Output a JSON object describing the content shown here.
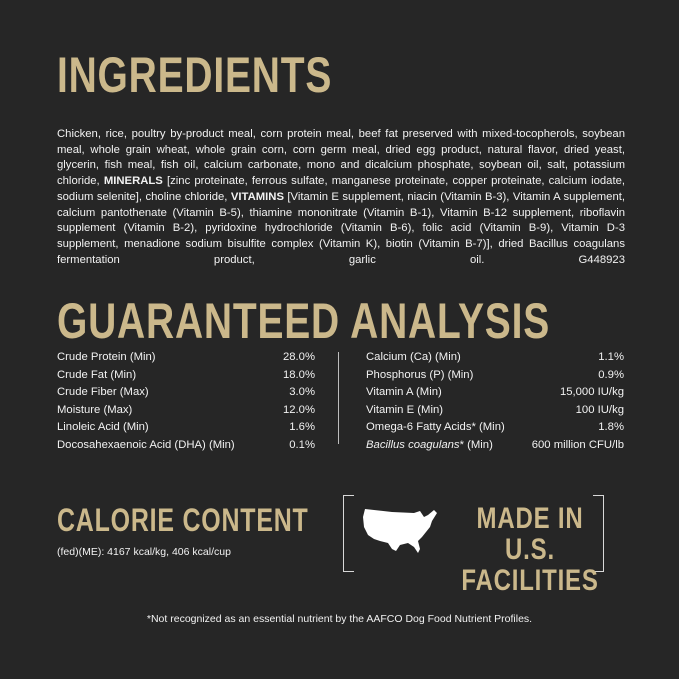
{
  "ingredients": {
    "title": "INGREDIENTS",
    "text_1": "Chicken, rice, poultry by-product meal, corn protein meal, beef fat preserved with mixed-tocopherols, soybean meal, whole grain wheat, whole grain corn, corn germ meal, dried egg product, natural flavor, dried yeast, glycerin, fish meal, fish oil, calcium carbonate, mono and dicalcium phosphate, soybean oil, salt, potassium chloride, ",
    "minerals_label": "MINERALS",
    "text_2": " [zinc proteinate, ferrous sulfate, manganese proteinate, copper proteinate, calcium iodate, sodium selenite], choline chloride, ",
    "vitamins_label": "VITAMINS",
    "text_3": " [Vitamin E supplement, niacin (Vitamin B-3), Vitamin A supplement, calcium pantothenate (Vitamin B-5), thiamine mononitrate (Vitamin B-1), Vitamin B-12 supplement, riboflavin supplement (Vitamin B-2), pyridoxine hydrochloride (Vitamin B-6), folic acid (Vitamin B-9), Vitamin D-3 supplement, menadione sodium bisulfite complex (Vitamin K), biotin (Vitamin B-7)], dried Bacillus coagulans fermentation product, garlic oil.   G448923"
  },
  "analysis": {
    "title": "GUARANTEED ANALYSIS",
    "left": [
      {
        "label": "Crude Protein (Min)",
        "value": "28.0%"
      },
      {
        "label": "Crude Fat (Min)",
        "value": "18.0%"
      },
      {
        "label": "Crude Fiber (Max)",
        "value": "3.0%"
      },
      {
        "label": "Moisture (Max)",
        "value": "12.0%"
      },
      {
        "label": "Linoleic Acid (Min)",
        "value": "1.6%"
      },
      {
        "label": "Docosahexaenoic Acid (DHA) (Min)",
        "value": "0.1%"
      }
    ],
    "right": [
      {
        "label": "Calcium (Ca) (Min)",
        "value": "1.1%"
      },
      {
        "label": "Phosphorus (P) (Min)",
        "value": "0.9%"
      },
      {
        "label": "Vitamin A (Min)",
        "value": "15,000 IU/kg"
      },
      {
        "label": "Vitamin E (Min)",
        "value": "100 IU/kg"
      },
      {
        "label": "Omega-6 Fatty Acids* (Min)",
        "value": "1.8%"
      },
      {
        "label_italic": "Bacillus coagulans",
        "label": "* (Min)",
        "value": "600 million CFU/lb"
      }
    ]
  },
  "calorie": {
    "title": "CALORIE CONTENT",
    "text": "(fed)(ME): 4167 kcal/kg, 406 kcal/cup"
  },
  "badge": {
    "icon": "usa-map-icon",
    "line1": "MADE IN U.S.",
    "line2": "FACILITIES"
  },
  "footnote": "*Not recognized as an essential nutrient by the AAFCO Dog Food Nutrient Profiles.",
  "colors": {
    "background": "#262626",
    "accent": "#cbb88b",
    "text": "#f2f2f2"
  }
}
